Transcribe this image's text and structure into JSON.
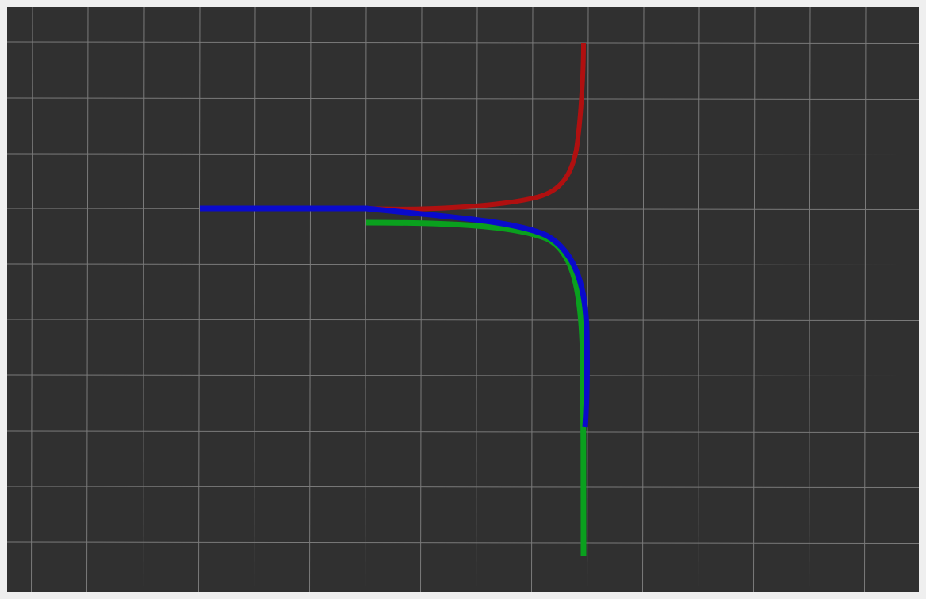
{
  "viewer": {
    "background_color": "#303030",
    "frame_color": "#efefef",
    "grid": {
      "visible": true,
      "line_color": "#7a7a7a",
      "columns": 17,
      "rows": 11
    }
  },
  "paths": [
    {
      "name": "red-trajectory",
      "color": "#b01010"
    },
    {
      "name": "green-trajectory",
      "color": "#0aa01e"
    },
    {
      "name": "blue-trajectory",
      "color": "#0a0acc"
    }
  ]
}
